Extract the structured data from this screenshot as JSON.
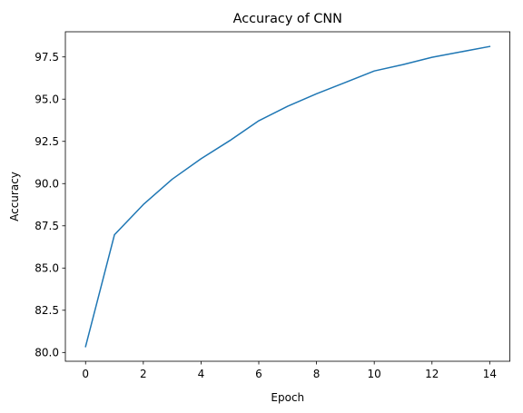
{
  "chart_data": {
    "type": "line",
    "title": "Accuracy of CNN",
    "xlabel": "Epoch",
    "ylabel": "Accuracy",
    "xlim": [
      -0.7,
      14.7
    ],
    "ylim": [
      79.48,
      98.99
    ],
    "xticks": [
      0,
      2,
      4,
      6,
      8,
      10,
      12,
      14
    ],
    "xtick_labels": [
      "0",
      "2",
      "4",
      "6",
      "8",
      "10",
      "12",
      "14"
    ],
    "yticks": [
      80.0,
      82.5,
      85.0,
      87.5,
      90.0,
      92.5,
      95.0,
      97.5
    ],
    "ytick_labels": [
      "80.0",
      "82.5",
      "85.0",
      "87.5",
      "90.0",
      "92.5",
      "95.0",
      "97.5"
    ],
    "grid": false,
    "series": [
      {
        "color": "#1f77b4",
        "x": [
          0,
          1,
          2,
          3,
          4,
          5,
          6,
          7,
          8,
          9,
          10,
          11,
          12,
          13,
          14
        ],
        "values": [
          80.35,
          86.97,
          88.76,
          90.26,
          91.47,
          92.55,
          93.72,
          94.58,
          95.32,
          95.99,
          96.67,
          97.05,
          97.48,
          97.8,
          98.12
        ]
      }
    ]
  }
}
